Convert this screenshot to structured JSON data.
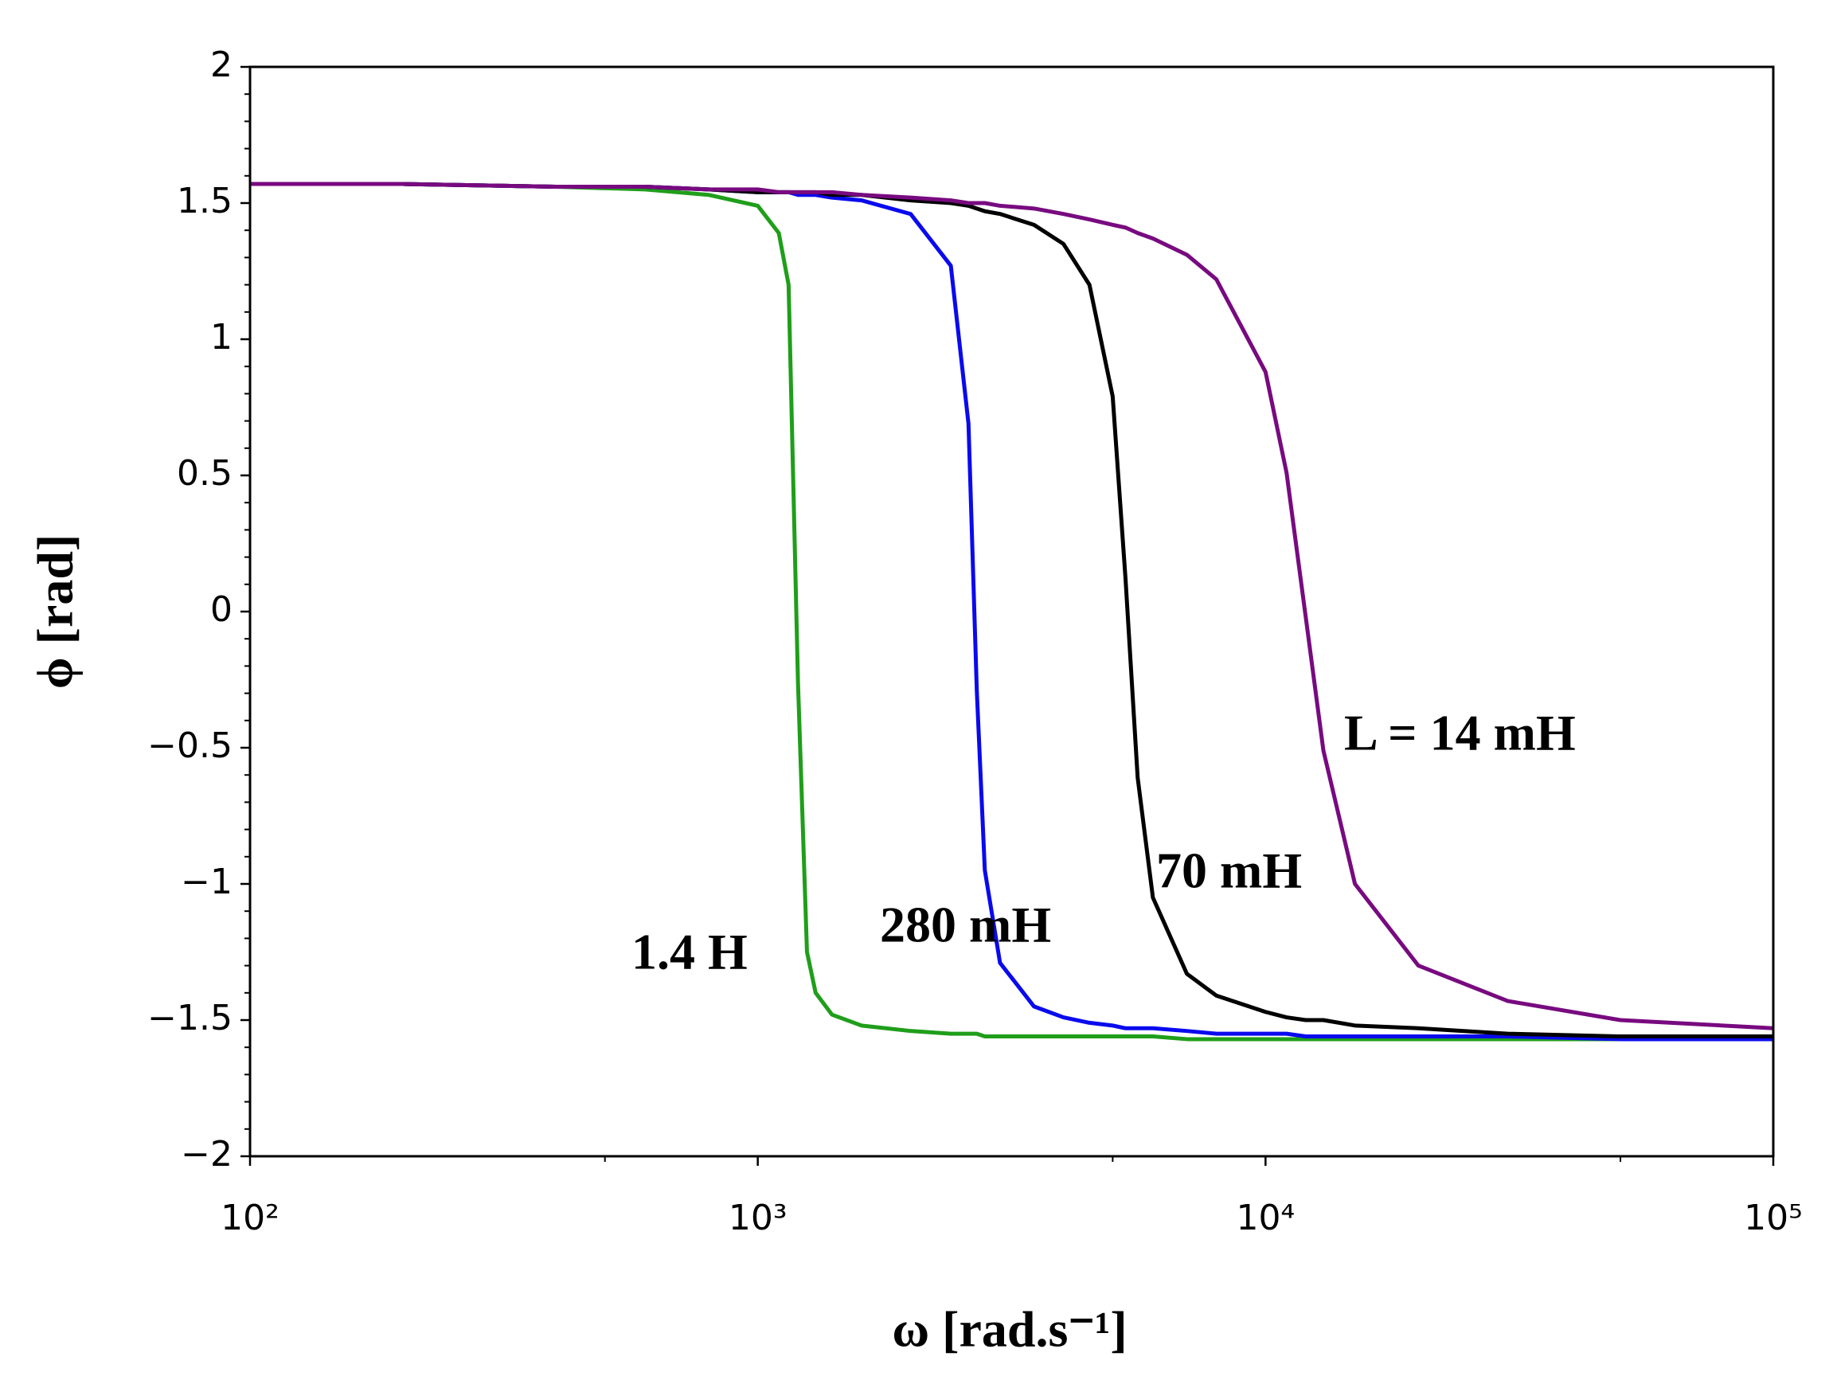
{
  "chart_data": {
    "type": "line",
    "xlabel": "ω [rad.s⁻¹]",
    "ylabel": "ϕ [rad]",
    "xscale": "log",
    "x": [
      100,
      200,
      400,
      600,
      800,
      1000,
      1100,
      1150,
      1200,
      1250,
      1300,
      1400,
      1600,
      2000,
      2400,
      2600,
      2700,
      2800,
      3000,
      3500,
      4000,
      4500,
      5000,
      5300,
      5600,
      6000,
      7000,
      8000,
      10000,
      11000,
      12000,
      13000,
      15000,
      20000,
      30000,
      50000,
      100000
    ],
    "series": [
      {
        "name": "1.4 H",
        "color": "#1f9e1a",
        "values": [
          1.57,
          1.57,
          1.56,
          1.55,
          1.53,
          1.49,
          1.39,
          1.2,
          -0.26,
          -1.25,
          -1.4,
          -1.48,
          -1.52,
          -1.54,
          -1.55,
          -1.55,
          -1.55,
          -1.56,
          -1.56,
          -1.56,
          -1.56,
          -1.56,
          -1.56,
          -1.56,
          -1.56,
          -1.56,
          -1.57,
          -1.57,
          -1.57,
          -1.57,
          -1.57,
          -1.57,
          -1.57,
          -1.57,
          -1.57,
          -1.57,
          -1.57
        ]
      },
      {
        "name": "280 mH",
        "color": "#0a0aee",
        "values": [
          1.57,
          1.57,
          1.56,
          1.56,
          1.55,
          1.54,
          1.54,
          1.54,
          1.53,
          1.53,
          1.53,
          1.52,
          1.51,
          1.46,
          1.27,
          0.69,
          -0.29,
          -0.95,
          -1.29,
          -1.45,
          -1.49,
          -1.51,
          -1.52,
          -1.53,
          -1.53,
          -1.53,
          -1.54,
          -1.55,
          -1.55,
          -1.55,
          -1.56,
          -1.56,
          -1.56,
          -1.56,
          -1.56,
          -1.57,
          -1.57
        ]
      },
      {
        "name": "70 mH",
        "color": "#000000",
        "values": [
          1.57,
          1.57,
          1.56,
          1.56,
          1.55,
          1.54,
          1.54,
          1.54,
          1.54,
          1.54,
          1.54,
          1.53,
          1.53,
          1.51,
          1.5,
          1.49,
          1.48,
          1.47,
          1.46,
          1.42,
          1.35,
          1.2,
          0.79,
          0.12,
          -0.61,
          -1.05,
          -1.33,
          -1.41,
          -1.47,
          -1.49,
          -1.5,
          -1.5,
          -1.52,
          -1.53,
          -1.55,
          -1.56,
          -1.56
        ]
      },
      {
        "name": "L = 14 mH",
        "color": "#780a80",
        "values": [
          1.57,
          1.57,
          1.56,
          1.56,
          1.55,
          1.55,
          1.54,
          1.54,
          1.54,
          1.54,
          1.54,
          1.54,
          1.53,
          1.52,
          1.51,
          1.5,
          1.5,
          1.5,
          1.49,
          1.48,
          1.46,
          1.44,
          1.42,
          1.41,
          1.39,
          1.37,
          1.31,
          1.22,
          0.88,
          0.51,
          -0.02,
          -0.51,
          -1.0,
          -1.3,
          -1.43,
          -1.5,
          -1.53
        ]
      }
    ],
    "xlim": [
      100,
      100000
    ],
    "xticks": [
      {
        "value": 100,
        "label": "10²"
      },
      {
        "value": 1000,
        "label": "10³"
      },
      {
        "value": 10000,
        "label": "10⁴"
      },
      {
        "value": 100000,
        "label": "10⁵"
      }
    ],
    "xminorticks": [
      500,
      5000,
      50000
    ],
    "ylim": [
      -2,
      2
    ],
    "yticks": [
      {
        "value": -2,
        "label": "−2"
      },
      {
        "value": -1.5,
        "label": "−1.5"
      },
      {
        "value": -1,
        "label": "−1"
      },
      {
        "value": -0.5,
        "label": "−0.5"
      },
      0,
      0.5,
      1,
      1.5,
      2
    ],
    "yminorticks": [
      -1.9,
      -1.8,
      -1.7,
      -1.6,
      -1.4,
      -1.3,
      -1.2,
      -1.1,
      -0.9,
      -0.8,
      -0.7,
      -0.6,
      -0.4,
      -0.3,
      -0.2,
      -0.1,
      0.1,
      0.2,
      0.3,
      0.4,
      0.6,
      0.7,
      0.8,
      0.9,
      1.1,
      1.2,
      1.3,
      1.4,
      1.6,
      1.7,
      1.8,
      1.9
    ],
    "grid": false
  }
}
